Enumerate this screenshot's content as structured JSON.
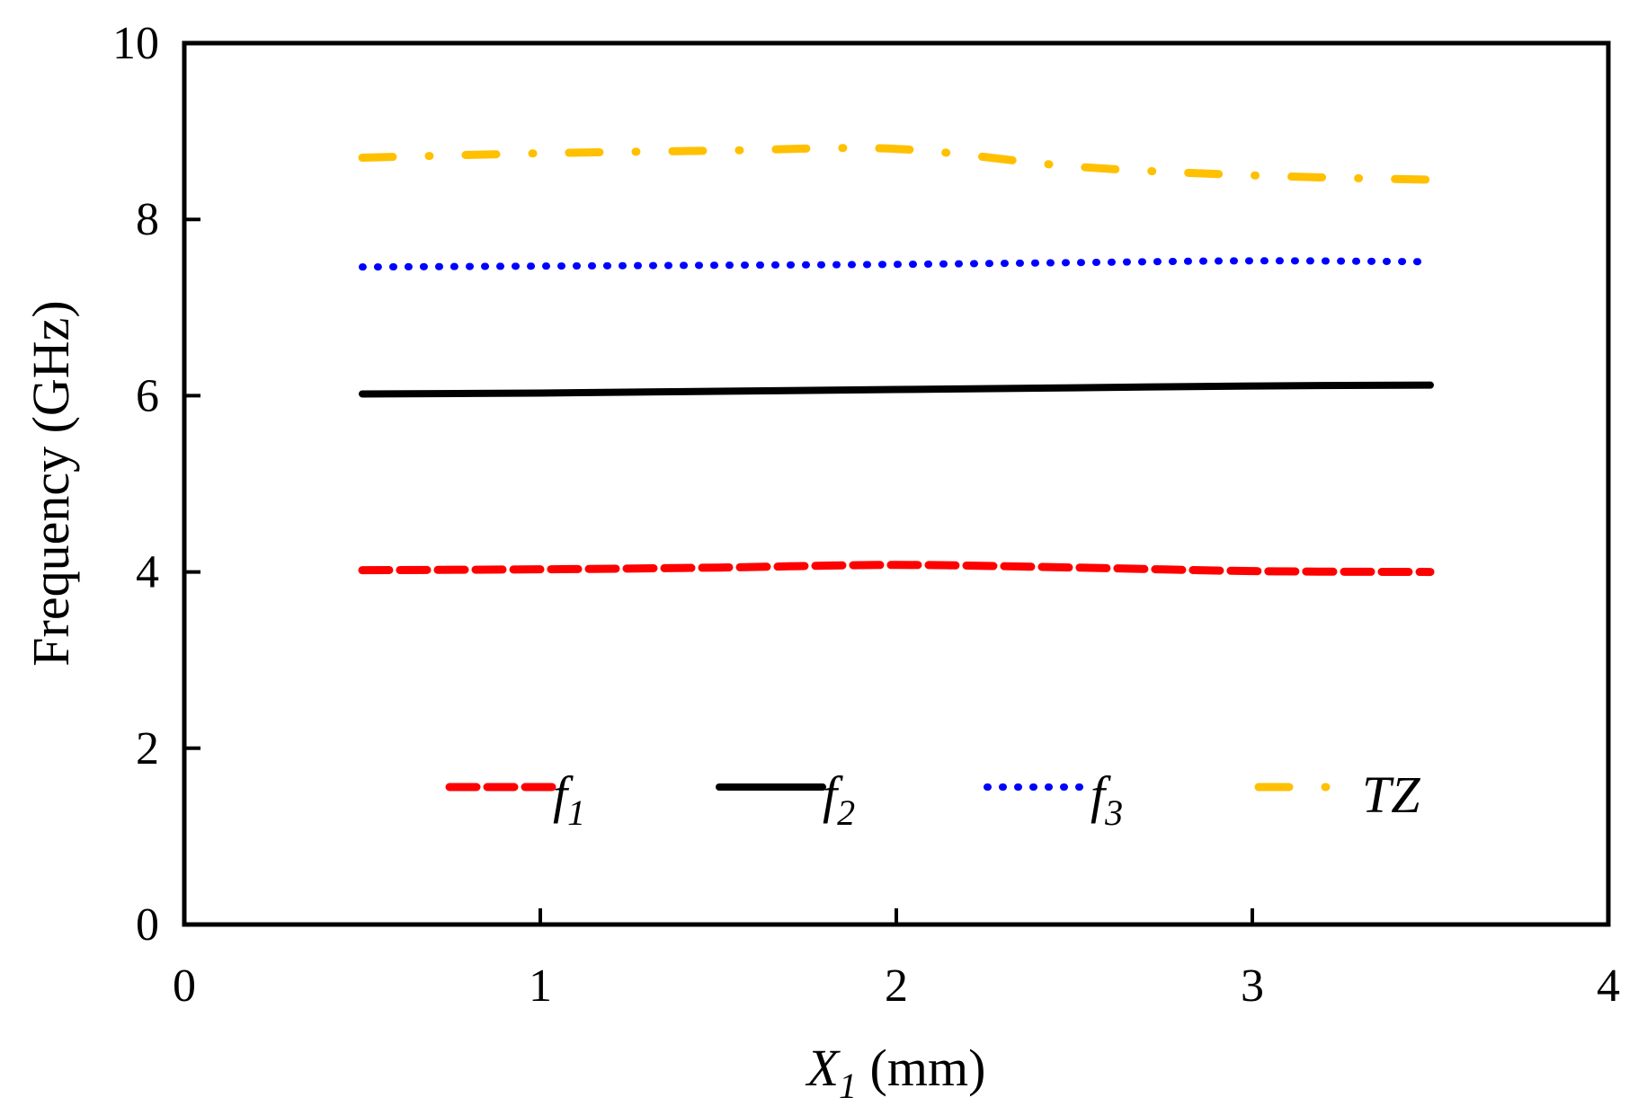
{
  "chart_data": {
    "type": "line",
    "title": "",
    "xlabel": {
      "symbol": "X",
      "subscript": "1",
      "unit": " (mm)"
    },
    "ylabel": "Frequency (GHz)",
    "xlim": [
      0,
      4
    ],
    "ylim": [
      0,
      10
    ],
    "xticks": [
      0,
      1,
      2,
      3,
      4
    ],
    "yticks": [
      0,
      2,
      4,
      6,
      8,
      10
    ],
    "grid": false,
    "legend_position": "bottom",
    "x": [
      0.5,
      1.0,
      1.5,
      2.0,
      2.5,
      3.0,
      3.5
    ],
    "series": [
      {
        "name": "f1",
        "label_main": "f",
        "label_sub": "1",
        "color": "#ff0000",
        "style": "dashed",
        "values": [
          4.02,
          4.03,
          4.05,
          4.08,
          4.05,
          4.01,
          4.0
        ]
      },
      {
        "name": "f2",
        "label_main": "f",
        "label_sub": "2",
        "color": "#000000",
        "style": "solid",
        "values": [
          6.02,
          6.03,
          6.05,
          6.07,
          6.09,
          6.11,
          6.12
        ]
      },
      {
        "name": "f3",
        "label_main": "f",
        "label_sub": "3",
        "color": "#0000ff",
        "style": "dotted",
        "values": [
          7.46,
          7.47,
          7.48,
          7.49,
          7.51,
          7.53,
          7.52
        ]
      },
      {
        "name": "TZ",
        "label_main": "TZ",
        "label_sub": "",
        "color": "#ffc000",
        "style": "dashdot",
        "values": [
          8.7,
          8.75,
          8.78,
          8.8,
          8.6,
          8.5,
          8.45
        ]
      }
    ]
  }
}
